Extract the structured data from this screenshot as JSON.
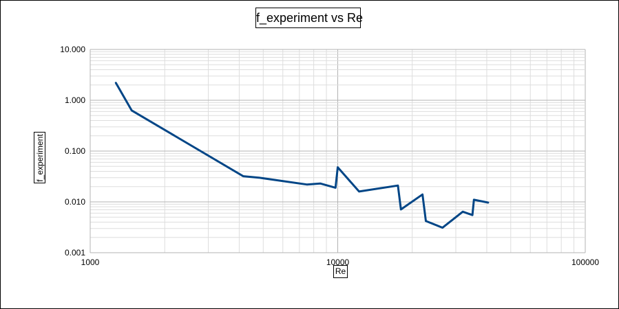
{
  "chart_data": {
    "type": "line",
    "title": "f_experiment vs Re",
    "xlabel": "Re",
    "ylabel": "f_experiment",
    "xscale": "log",
    "yscale": "log",
    "xlim": [
      1000,
      100000
    ],
    "ylim": [
      0.001,
      10
    ],
    "x_ticks": [
      "1000",
      "10000",
      "100000"
    ],
    "y_ticks": [
      "0.001",
      "0.010",
      "0.100",
      "1.000",
      "10.000"
    ],
    "grid": true,
    "legend": "none",
    "series": [
      {
        "color": "#004586",
        "x": [
          1270,
          1470,
          4150,
          4800,
          7500,
          8500,
          9800,
          10000,
          12200,
          17500,
          18000,
          22000,
          22700,
          26500,
          32000,
          35000,
          35500,
          40500
        ],
        "y": [
          2.2,
          0.63,
          0.032,
          0.03,
          0.022,
          0.023,
          0.019,
          0.048,
          0.016,
          0.021,
          0.0071,
          0.014,
          0.0042,
          0.0031,
          0.0064,
          0.0055,
          0.011,
          0.0097
        ]
      }
    ]
  }
}
